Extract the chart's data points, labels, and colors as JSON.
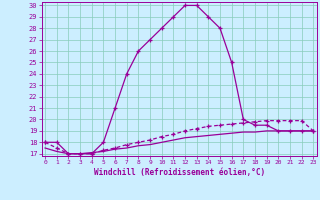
{
  "xlabel": "Windchill (Refroidissement éolien,°C)",
  "x": [
    0,
    1,
    2,
    3,
    4,
    5,
    6,
    7,
    8,
    9,
    10,
    11,
    12,
    13,
    14,
    15,
    16,
    17,
    18,
    19,
    20,
    21,
    22,
    23
  ],
  "line1": [
    18,
    18,
    17,
    17,
    17,
    18,
    21,
    24,
    26,
    27,
    28,
    29,
    30,
    30,
    29,
    28,
    25,
    20,
    19.5,
    19.5,
    19,
    19,
    19,
    19
  ],
  "line2": [
    18,
    17.5,
    17,
    17,
    17,
    17.3,
    17.5,
    17.8,
    18,
    18.2,
    18.5,
    18.7,
    19,
    19.2,
    19.4,
    19.5,
    19.6,
    19.7,
    19.8,
    19.9,
    19.9,
    19.9,
    19.9,
    19
  ],
  "line3": [
    17.5,
    17.2,
    17,
    17,
    17.1,
    17.2,
    17.4,
    17.5,
    17.7,
    17.8,
    18,
    18.2,
    18.4,
    18.5,
    18.6,
    18.7,
    18.8,
    18.9,
    18.9,
    19,
    19,
    19,
    19,
    19
  ],
  "line_color": "#990099",
  "bg_color": "#cceeff",
  "grid_color": "#88ccbb",
  "ylim_min": 16.8,
  "ylim_max": 30.3,
  "xlim_min": -0.3,
  "xlim_max": 23.3,
  "yticks": [
    17,
    18,
    19,
    20,
    21,
    22,
    23,
    24,
    25,
    26,
    27,
    28,
    29,
    30
  ],
  "xticks": [
    0,
    1,
    2,
    3,
    4,
    5,
    6,
    7,
    8,
    9,
    10,
    11,
    12,
    13,
    14,
    15,
    16,
    17,
    18,
    19,
    20,
    21,
    22,
    23
  ]
}
